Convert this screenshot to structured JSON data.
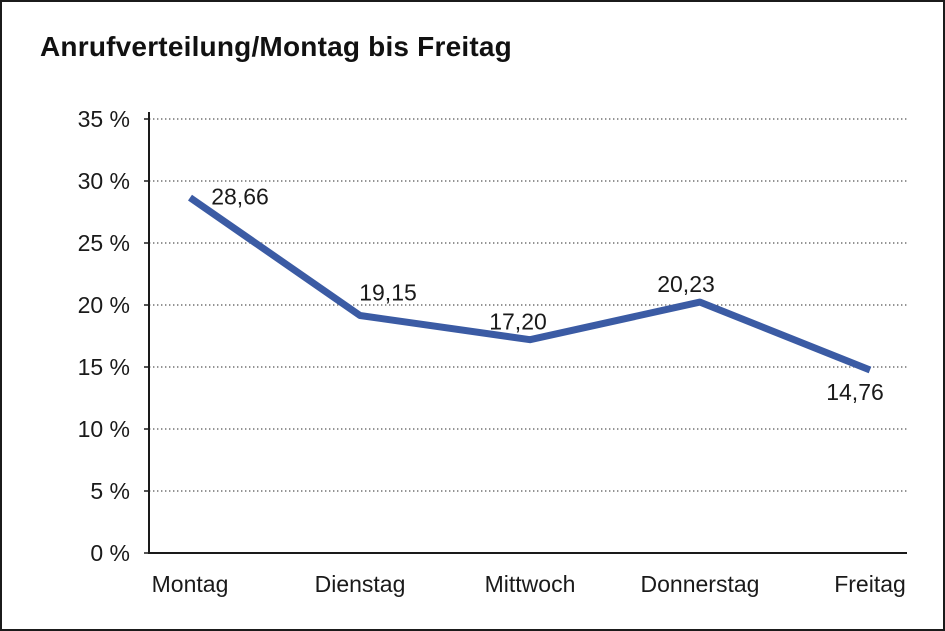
{
  "chart_data": {
    "type": "line",
    "title": "Anrufverteilung/Montag bis Freitag",
    "categories": [
      "Montag",
      "Dienstag",
      "Mittwoch",
      "Donnerstag",
      "Freitag"
    ],
    "series": [
      {
        "name": "Anrufverteilung",
        "values": [
          28.66,
          19.15,
          17.2,
          20.23,
          14.76
        ]
      }
    ],
    "point_labels": [
      "28,66",
      "19,15",
      "17,20",
      "20,23",
      "14,76"
    ],
    "y_ticks": {
      "values": [
        35,
        30,
        25,
        20,
        15,
        10,
        5,
        0
      ],
      "labels": [
        "35 %",
        "30 %",
        "25 %",
        "20 %",
        "15 %",
        "10 %",
        "5 %",
        "0 %"
      ]
    },
    "ylim": [
      0,
      35
    ],
    "xlabel": "",
    "ylabel": "",
    "grid": "horizontal-dotted",
    "legend": "none",
    "colors": {
      "line": "#3B5BA4",
      "text": "#1a1a1a",
      "grid": "#555555",
      "axis": "#1a1a1a",
      "background": "#ffffff"
    }
  }
}
